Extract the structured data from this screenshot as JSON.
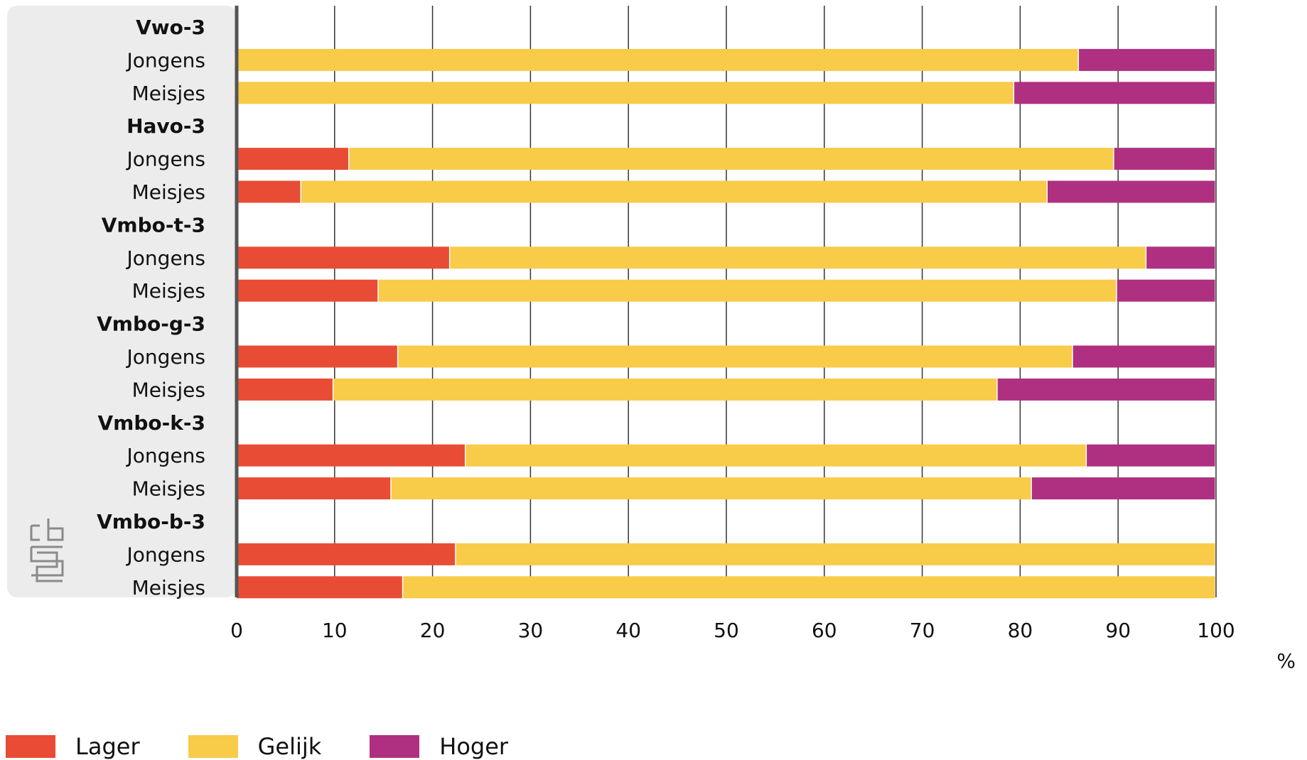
{
  "chart_data": {
    "type": "bar",
    "orientation": "horizontal",
    "stacked": true,
    "xlabel": "%",
    "xlim": [
      0,
      100
    ],
    "xticks": [
      0,
      10,
      20,
      30,
      40,
      50,
      60,
      70,
      80,
      90,
      100
    ],
    "grid": true,
    "legend_position": "bottom-left",
    "colors": {
      "panel": "#ececec",
      "grid": "#333333",
      "axis": "#555555"
    },
    "series": [
      {
        "name": "Lager",
        "color": "#e94c34"
      },
      {
        "name": "Gelijk",
        "color": "#f8cb48"
      },
      {
        "name": "Hoger",
        "color": "#af3080"
      }
    ],
    "groups": [
      {
        "name": "Vwo-3",
        "rows": [
          {
            "label": "Jongens",
            "values": [
              0,
              86,
              14
            ]
          },
          {
            "label": "Meisjes",
            "values": [
              0,
              79.4,
              20.6
            ]
          }
        ]
      },
      {
        "name": "Havo-3",
        "rows": [
          {
            "label": "Jongens",
            "values": [
              11.5,
              78.1,
              10.4
            ]
          },
          {
            "label": "Meisjes",
            "values": [
              6.6,
              76.2,
              17.2
            ]
          }
        ]
      },
      {
        "name": "Vmbo-t-3",
        "rows": [
          {
            "label": "Jongens",
            "values": [
              21.8,
              71.1,
              7.1
            ]
          },
          {
            "label": "Meisjes",
            "values": [
              14.5,
              75.4,
              10.1
            ]
          }
        ]
      },
      {
        "name": "Vmbo-g-3",
        "rows": [
          {
            "label": "Jongens",
            "values": [
              16.5,
              68.9,
              14.6
            ]
          },
          {
            "label": "Meisjes",
            "values": [
              9.9,
              67.8,
              22.3
            ]
          }
        ]
      },
      {
        "name": "Vmbo-k-3",
        "rows": [
          {
            "label": "Jongens",
            "values": [
              23.4,
              63.4,
              13.2
            ]
          },
          {
            "label": "Meisjes",
            "values": [
              15.8,
              65.4,
              18.8
            ]
          }
        ]
      },
      {
        "name": "Vmbo-b-3",
        "rows": [
          {
            "label": "Jongens",
            "values": [
              22.4,
              77.6,
              0
            ]
          },
          {
            "label": "Meisjes",
            "values": [
              17,
              83,
              0
            ]
          }
        ]
      }
    ]
  }
}
